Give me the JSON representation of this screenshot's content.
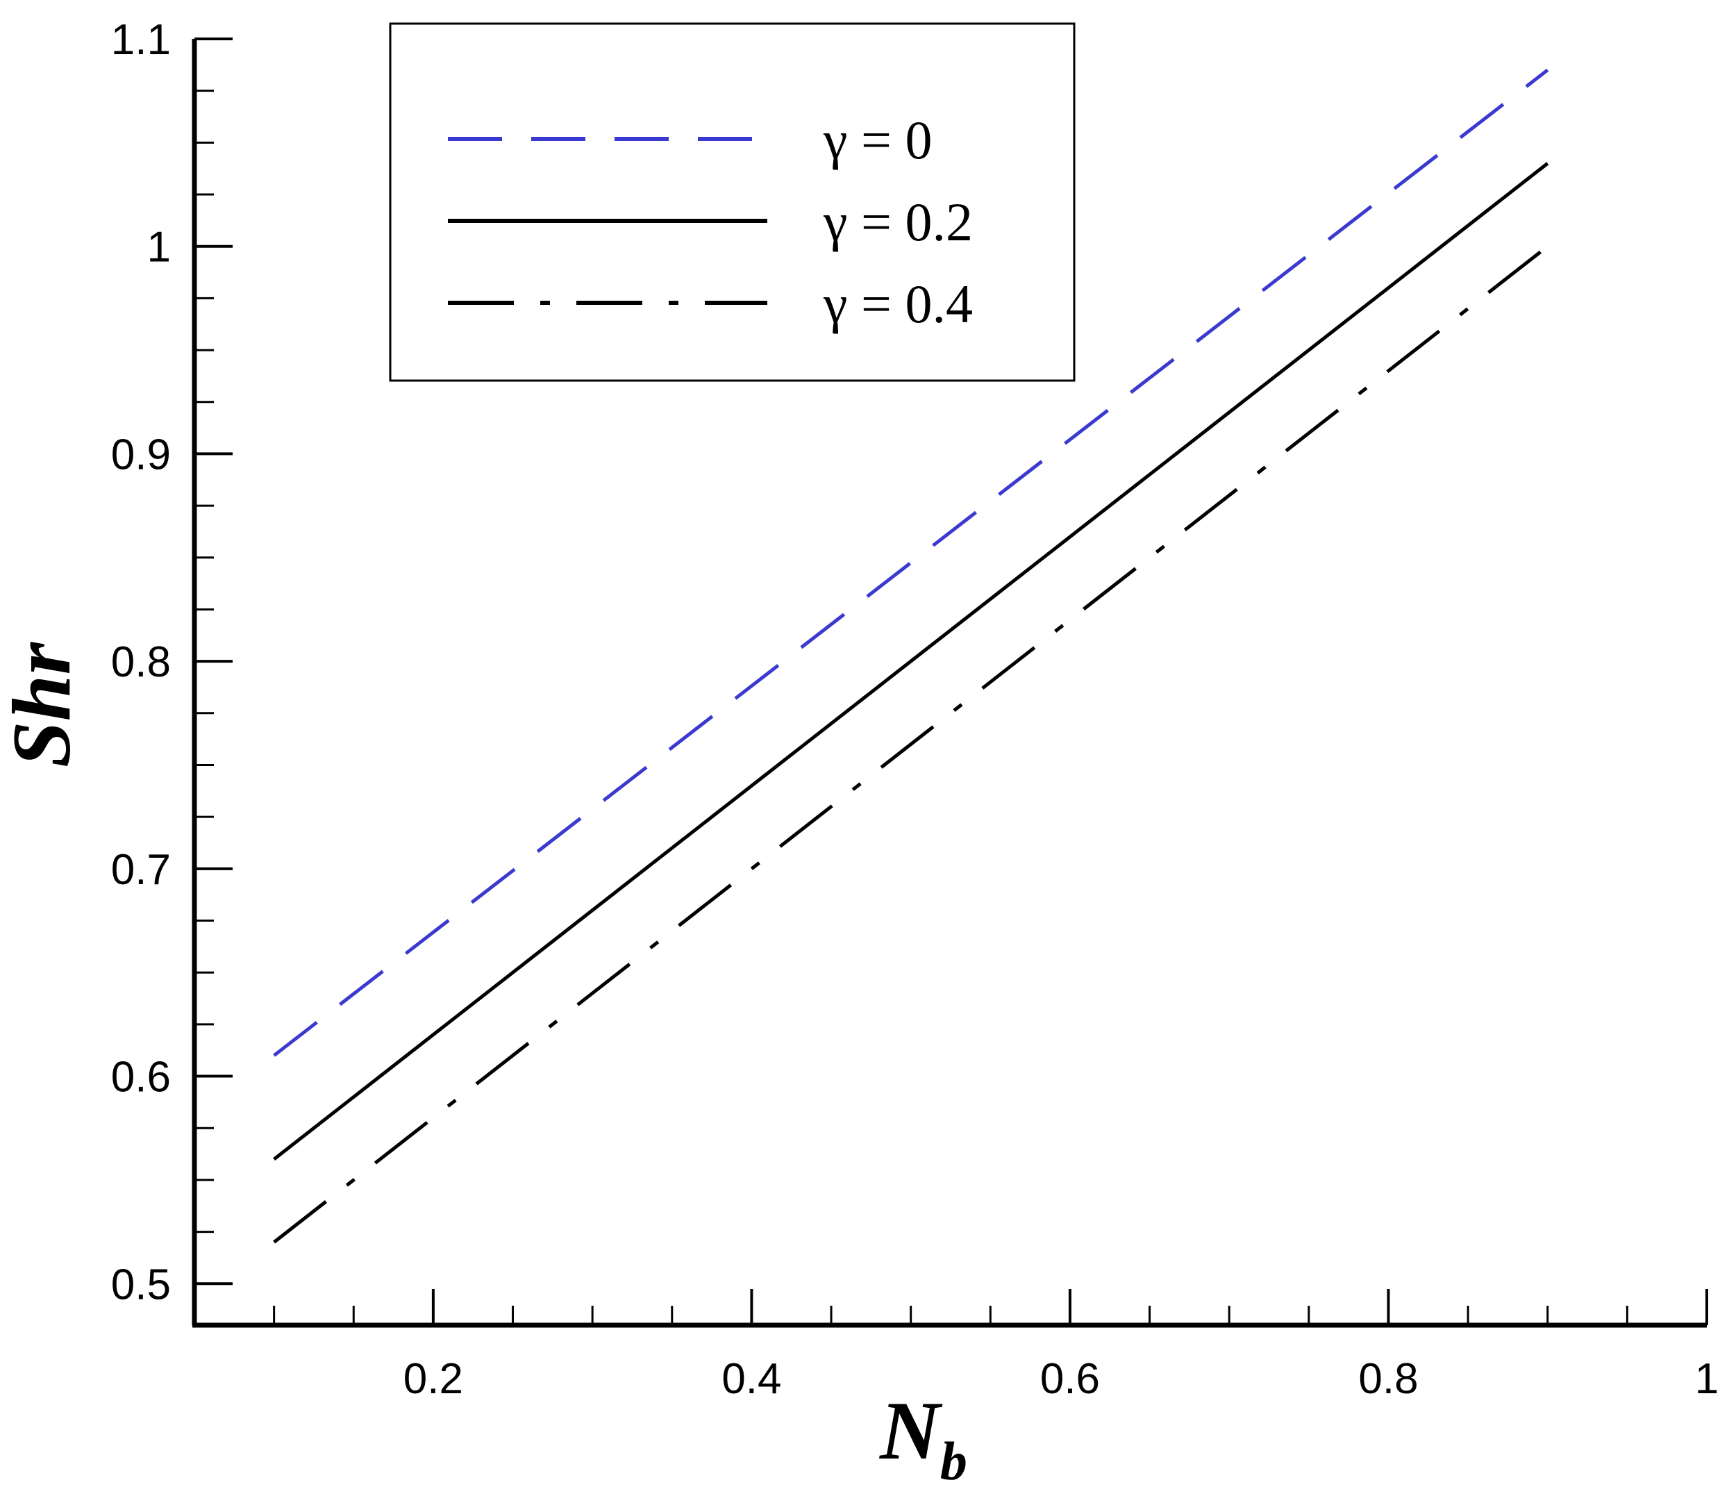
{
  "chart_data": {
    "type": "line",
    "xlabel": "N",
    "xlabel_sub": "b",
    "ylabel": "Shr",
    "xlim": [
      0.05,
      1.0
    ],
    "ylim": [
      0.48,
      1.1
    ],
    "x_ticks": [
      0.2,
      0.4,
      0.6,
      0.8,
      1.0
    ],
    "x_tick_labels": [
      "0.2",
      "0.4",
      "0.6",
      "0.8",
      "1"
    ],
    "y_ticks": [
      0.5,
      0.6,
      0.7,
      0.8,
      0.9,
      1.0,
      1.1
    ],
    "y_tick_labels": [
      "0.5",
      "0.6",
      "0.7",
      "0.8",
      "0.9",
      "1",
      "1.1"
    ],
    "grid": false,
    "legend_position": "top-left",
    "series": [
      {
        "name": "γ = 0",
        "style": "dashed",
        "color": "#3a3ad0",
        "x": [
          0.1,
          0.9
        ],
        "y": [
          0.61,
          1.085
        ]
      },
      {
        "name": "γ = 0.2",
        "style": "solid",
        "color": "#000000",
        "x": [
          0.1,
          0.9
        ],
        "y": [
          0.56,
          1.04
        ]
      },
      {
        "name": "γ = 0.4",
        "style": "dash-dot",
        "color": "#000000",
        "x": [
          0.1,
          0.9
        ],
        "y": [
          0.52,
          1.0
        ]
      }
    ]
  }
}
